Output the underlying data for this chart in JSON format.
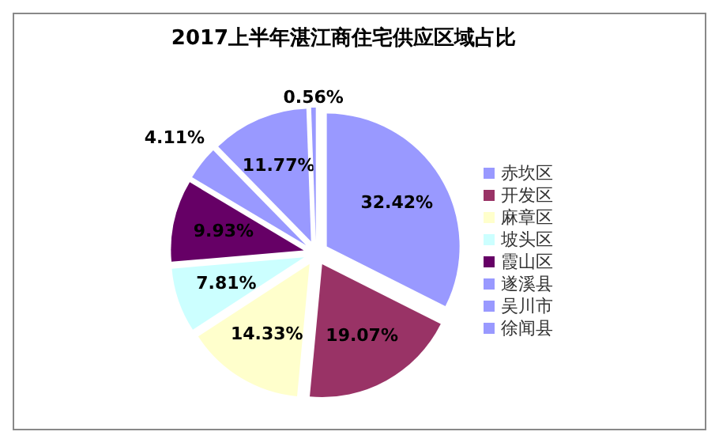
{
  "chart_data": {
    "type": "pie",
    "title": "2017上半年湛江商住宅供应区域占比",
    "categories": [
      "赤坎区",
      "开发区",
      "麻章区",
      "坡头区",
      "霞山区",
      "遂溪县",
      "吴川市",
      "徐闻县"
    ],
    "values": [
      32.42,
      19.07,
      14.33,
      7.81,
      9.93,
      4.11,
      11.77,
      0.56
    ],
    "colors": [
      "#9999ff",
      "#993366",
      "#ffffcc",
      "#ccffff",
      "#660066",
      "#9999ff",
      "#9999ff",
      "#9999ff"
    ],
    "value_labels": [
      "32.42%",
      "19.07%",
      "14.33%",
      "7.81%",
      "9.93%",
      "4.11%",
      "11.77%",
      "0.56%"
    ],
    "legend": "right"
  }
}
